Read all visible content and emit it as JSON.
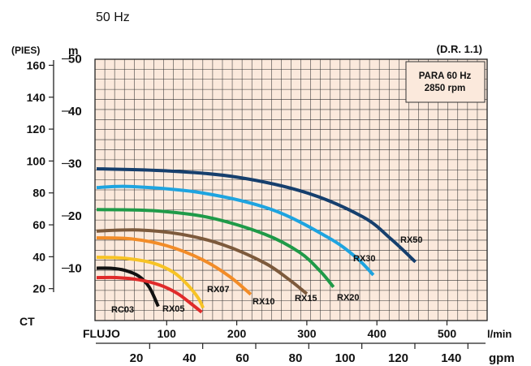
{
  "header": {
    "frequency": "50 Hz",
    "frequency_color": "#e8762c"
  },
  "chart_data": {
    "type": "line",
    "title": "",
    "reference": "(D.R. 1.1)",
    "note": {
      "line1": "PARA 60 Hz",
      "line2": "2850 rpm"
    },
    "left_axis_unit": "(PIES)",
    "right_axis_unit": "m",
    "y_title": "CT",
    "x_title": "FLUJO",
    "x_unit_primary": "l/min",
    "x_unit_secondary": "gpm",
    "xlim_lmin": [
      0,
      600
    ],
    "ylim_m": [
      0,
      55
    ],
    "x_ticks_lmin": [
      "100",
      "200",
      "300",
      "400",
      "500"
    ],
    "x_ticks_gpm": [
      "20",
      "40",
      "60",
      "80",
      "100",
      "120",
      "140"
    ],
    "y_ticks_m": [
      "10",
      "20",
      "30",
      "40",
      "50"
    ],
    "y_ticks_ft": [
      "20",
      "40",
      "60",
      "80",
      "100",
      "120",
      "140",
      "160"
    ],
    "grid": true,
    "grid_background": "#fbe9dc",
    "series": [
      {
        "name": "RC03",
        "color": "#111111",
        "points": [
          [
            0,
            10.0
          ],
          [
            20,
            10.0
          ],
          [
            40,
            9.6
          ],
          [
            60,
            8.5
          ],
          [
            75,
            6.4
          ],
          [
            88,
            2.7
          ]
        ]
      },
      {
        "name": "RX05",
        "color": "#e02a2a",
        "points": [
          [
            0,
            8.2
          ],
          [
            30,
            8.2
          ],
          [
            60,
            7.8
          ],
          [
            90,
            6.8
          ],
          [
            115,
            5.2
          ],
          [
            135,
            3.2
          ],
          [
            150,
            1.6
          ]
        ]
      },
      {
        "name": "RX07",
        "color": "#f7c325",
        "points": [
          [
            0,
            12.1
          ],
          [
            40,
            11.9
          ],
          [
            80,
            11.0
          ],
          [
            110,
            9.2
          ],
          [
            130,
            6.8
          ],
          [
            145,
            4.3
          ],
          [
            152,
            2.4
          ]
        ]
      },
      {
        "name": "RX10",
        "color": "#f28c28",
        "points": [
          [
            0,
            15.8
          ],
          [
            50,
            15.6
          ],
          [
            100,
            14.3
          ],
          [
            150,
            11.7
          ],
          [
            190,
            8.4
          ],
          [
            220,
            5.0
          ]
        ]
      },
      {
        "name": "RX15",
        "color": "#7d5a3c",
        "points": [
          [
            0,
            17.1
          ],
          [
            60,
            17.3
          ],
          [
            120,
            16.5
          ],
          [
            180,
            14.5
          ],
          [
            240,
            11.0
          ],
          [
            275,
            7.8
          ],
          [
            300,
            5.1
          ]
        ]
      },
      {
        "name": "RX20",
        "color": "#1f9a48",
        "points": [
          [
            0,
            21.2
          ],
          [
            80,
            21.0
          ],
          [
            160,
            19.7
          ],
          [
            240,
            16.5
          ],
          [
            290,
            13.0
          ],
          [
            320,
            9.3
          ],
          [
            338,
            6.4
          ]
        ]
      },
      {
        "name": "RX30",
        "color": "#1ea4e0",
        "points": [
          [
            0,
            25.4
          ],
          [
            50,
            25.6
          ],
          [
            150,
            24.4
          ],
          [
            250,
            21.2
          ],
          [
            330,
            15.9
          ],
          [
            370,
            12.1
          ],
          [
            395,
            8.7
          ]
        ]
      },
      {
        "name": "RX50",
        "color": "#163f6d",
        "points": [
          [
            0,
            29.0
          ],
          [
            100,
            28.6
          ],
          [
            200,
            27.4
          ],
          [
            300,
            24.4
          ],
          [
            380,
            19.8
          ],
          [
            420,
            15.6
          ],
          [
            455,
            11.2
          ]
        ]
      }
    ],
    "curve_labels": [
      "RC03",
      "RX05",
      "RX07",
      "RX10",
      "RX15",
      "RX20",
      "RX30",
      "RX50"
    ]
  }
}
